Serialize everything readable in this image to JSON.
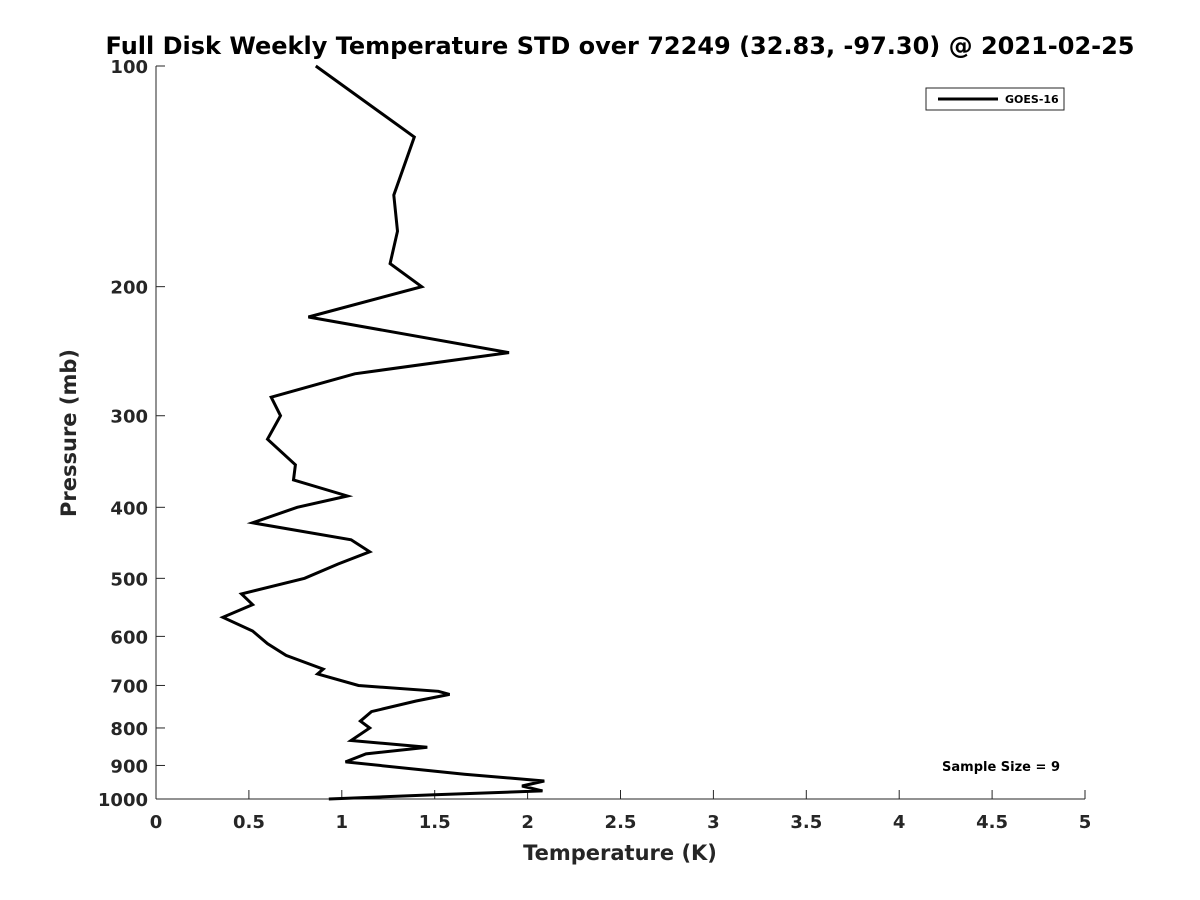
{
  "chart_data": {
    "type": "line",
    "title": "Full Disk Weekly Temperature STD over 72249 (32.83, -97.30) @ 2021-02-25",
    "xlabel": "Temperature (K)",
    "ylabel": "Pressure (mb)",
    "xlim": [
      0,
      5
    ],
    "ylim": [
      100,
      1000
    ],
    "y_scale": "log",
    "y_reversed": true,
    "grid": false,
    "legend_position": "top-right",
    "x_ticks": [
      "0",
      "0.5",
      "1",
      "1.5",
      "2",
      "2.5",
      "3",
      "3.5",
      "4",
      "4.5",
      "5"
    ],
    "y_ticks": [
      "100",
      "200",
      "300",
      "400",
      "500",
      "600",
      "700",
      "800",
      "900",
      "1000"
    ],
    "series": [
      {
        "name": "GOES-16",
        "color": "#000000",
        "points": [
          [
            0.86,
            100
          ],
          [
            1.39,
            125
          ],
          [
            1.28,
            150
          ],
          [
            1.3,
            168
          ],
          [
            1.26,
            186
          ],
          [
            1.43,
            200
          ],
          [
            0.82,
            220
          ],
          [
            1.9,
            246
          ],
          [
            1.07,
            263
          ],
          [
            0.62,
            283
          ],
          [
            0.67,
            300
          ],
          [
            0.6,
            323
          ],
          [
            0.75,
            350
          ],
          [
            0.74,
            367
          ],
          [
            1.03,
            386
          ],
          [
            0.76,
            400
          ],
          [
            0.52,
            420
          ],
          [
            1.05,
            443
          ],
          [
            1.15,
            460
          ],
          [
            0.98,
            478
          ],
          [
            0.8,
            500
          ],
          [
            0.46,
            525
          ],
          [
            0.52,
            543
          ],
          [
            0.36,
            565
          ],
          [
            0.52,
            590
          ],
          [
            0.6,
            614
          ],
          [
            0.7,
            637
          ],
          [
            0.9,
            665
          ],
          [
            0.87,
            675
          ],
          [
            1.09,
            700
          ],
          [
            1.52,
            713
          ],
          [
            1.58,
            720
          ],
          [
            1.4,
            735
          ],
          [
            1.16,
            760
          ],
          [
            1.1,
            783
          ],
          [
            1.15,
            800
          ],
          [
            1.05,
            832
          ],
          [
            1.46,
            850
          ],
          [
            1.13,
            868
          ],
          [
            1.02,
            890
          ],
          [
            1.66,
            925
          ],
          [
            2.09,
            945
          ],
          [
            1.97,
            960
          ],
          [
            2.08,
            975
          ],
          [
            1.5,
            987
          ],
          [
            0.93,
            1000
          ]
        ]
      }
    ],
    "annotations": [
      "Sample Size = 9"
    ]
  }
}
